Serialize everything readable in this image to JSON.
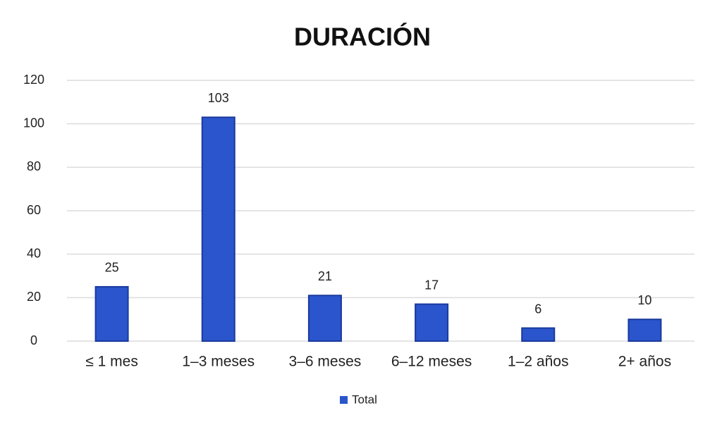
{
  "chart_data": {
    "type": "bar",
    "title": "DURACIÓN",
    "categories": [
      "≤ 1 mes",
      "1–3 meses",
      "3–6 meses",
      "6–12 meses",
      "1–2 años",
      "2+ años"
    ],
    "series": [
      {
        "name": "Total",
        "color": "#2b55cc",
        "values": [
          25,
          103,
          21,
          17,
          6,
          10
        ]
      }
    ],
    "ylim": [
      0,
      120
    ],
    "yticks": [
      0,
      20,
      40,
      60,
      80,
      100,
      120
    ],
    "grid": true,
    "legend": "bottom",
    "data_labels": true
  }
}
